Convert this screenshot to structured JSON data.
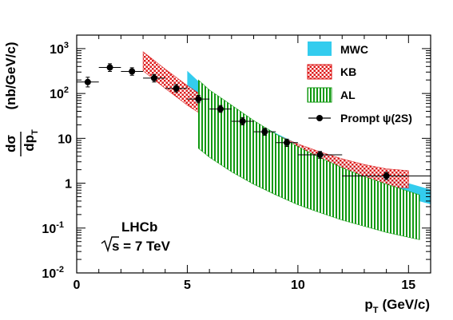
{
  "chart_data": {
    "type": "scatter",
    "title": "",
    "xlabel": "p",
    "xlabel_sub": "T",
    "xlabel_unit": "(GeV/c)",
    "ylabel_num": "dσ",
    "ylabel_den": "dp",
    "ylabel_den_sub": "T",
    "ylabel_unit": "(nb/GeV/c)",
    "xlim": [
      0,
      16
    ],
    "ylim": [
      0.01,
      2000
    ],
    "yscale": "log",
    "x_ticks": [
      0,
      5,
      10,
      15
    ],
    "x_tick_labels": [
      "0",
      "5",
      "10",
      "15"
    ],
    "y_ticks": [
      {
        "value": 0.01,
        "base": "10",
        "exp": "-2"
      },
      {
        "value": 0.1,
        "base": "10",
        "exp": "-1"
      },
      {
        "value": 1,
        "base": "1",
        "exp": ""
      },
      {
        "value": 10,
        "base": "10",
        "exp": ""
      },
      {
        "value": 100,
        "base": "10",
        "exp": "2"
      },
      {
        "value": 1000,
        "base": "10",
        "exp": "3"
      }
    ],
    "annotation_experiment": "LHCb",
    "annotation_energy": "s = 7 TeV",
    "legend_position": "top-right",
    "legend": {
      "mwc": "MWC",
      "kb": "KB",
      "al": "AL",
      "data": "Prompt ψ(2S)"
    },
    "colors": {
      "mwc": "#33ccee",
      "kb": "#dd1111",
      "al": "#119911",
      "data": "#000000"
    },
    "series": [
      {
        "name": "Prompt ψ(2S)",
        "kind": "points",
        "points": [
          {
            "x": 0.5,
            "y": 180,
            "xerr": 0.5,
            "ylo": 140,
            "yhi": 230
          },
          {
            "x": 1.5,
            "y": 380,
            "xerr": 0.5,
            "ylo": 310,
            "yhi": 460
          },
          {
            "x": 2.5,
            "y": 310,
            "xerr": 0.5,
            "ylo": 255,
            "yhi": 375
          },
          {
            "x": 3.5,
            "y": 220,
            "xerr": 0.5,
            "ylo": 180,
            "yhi": 265
          },
          {
            "x": 4.5,
            "y": 130,
            "xerr": 0.5,
            "ylo": 108,
            "yhi": 158
          },
          {
            "x": 5.5,
            "y": 75,
            "xerr": 0.5,
            "ylo": 62,
            "yhi": 91
          },
          {
            "x": 6.5,
            "y": 45,
            "xerr": 0.5,
            "ylo": 38,
            "yhi": 54
          },
          {
            "x": 7.5,
            "y": 24,
            "xerr": 0.5,
            "ylo": 20,
            "yhi": 29
          },
          {
            "x": 8.5,
            "y": 14,
            "xerr": 0.5,
            "ylo": 11.7,
            "yhi": 16.8
          },
          {
            "x": 9.5,
            "y": 8,
            "xerr": 0.5,
            "ylo": 6.6,
            "yhi": 9.6
          },
          {
            "x": 11,
            "y": 4.3,
            "xerr": 1,
            "ylo": 3.6,
            "yhi": 5.1
          },
          {
            "x": 14,
            "y": 1.45,
            "xerr": 2,
            "ylo": 1.2,
            "yhi": 1.75
          }
        ]
      },
      {
        "name": "MWC",
        "kind": "band",
        "x": [
          5,
          6,
          7,
          8,
          9,
          10,
          11,
          12,
          13,
          14,
          15,
          16
        ],
        "low": [
          90,
          38,
          18,
          9.5,
          5.3,
          3.1,
          1.9,
          1.25,
          0.85,
          0.6,
          0.46,
          0.34
        ],
        "high": [
          320,
          110,
          48,
          24,
          13,
          7.5,
          4.6,
          3.0,
          2.0,
          1.4,
          1.0,
          0.72
        ]
      },
      {
        "name": "KB",
        "kind": "band",
        "x": [
          3,
          4,
          5,
          6,
          7,
          8,
          9,
          10,
          11,
          12,
          13,
          14,
          15
        ],
        "low": [
          320,
          130,
          55,
          26,
          13.5,
          7.5,
          4.4,
          2.8,
          1.9,
          1.35,
          1.0,
          0.82,
          0.78
        ],
        "high": [
          850,
          350,
          150,
          70,
          36,
          20,
          12,
          7.5,
          5.0,
          3.5,
          2.6,
          2.1,
          1.9
        ]
      },
      {
        "name": "AL",
        "kind": "band",
        "x": [
          5.5,
          6,
          7,
          8,
          9,
          10,
          11,
          12,
          13,
          14,
          15.5
        ],
        "low": [
          6,
          3.8,
          1.8,
          0.95,
          0.55,
          0.33,
          0.22,
          0.15,
          0.11,
          0.08,
          0.055
        ],
        "high": [
          200,
          120,
          55,
          25,
          12.5,
          6.5,
          3.7,
          2.2,
          1.4,
          0.95,
          0.55
        ]
      }
    ]
  }
}
